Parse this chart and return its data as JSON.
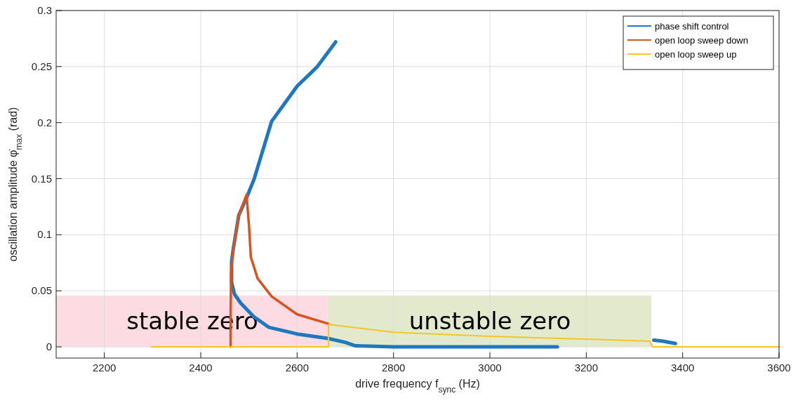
{
  "chart_data": {
    "type": "line",
    "xlabel": "drive frequency  f$_{sync}$ (Hz)",
    "ylabel": "oscillation amplitude φ̇$_{max}$ (rad)",
    "xlim": [
      2100,
      3600
    ],
    "ylim": [
      -0.01,
      0.3
    ],
    "xticks": [
      2200,
      2400,
      2600,
      2800,
      3000,
      3200,
      3400,
      3600
    ],
    "yticks": [
      0,
      0.05,
      0.1,
      0.15,
      0.2,
      0.25,
      0.3
    ],
    "grid": true,
    "legend": "top right",
    "line_style": "solid",
    "marker": "none",
    "bands": [
      {
        "axis": "x",
        "from": 2100,
        "to": 2665,
        "label": "stable zero",
        "color": "#fcdbe3"
      },
      {
        "axis": "x",
        "from": 2665,
        "to": 3335,
        "label": "unstable zero",
        "color": "#e3e9cd"
      }
    ],
    "series": [
      {
        "name": "phase shift control",
        "color": "#1f77c0",
        "x": [
          2680,
          2642,
          2600,
          2547,
          2511,
          2496,
          2479,
          2467,
          2464,
          2464,
          2470,
          2483,
          2510,
          2541,
          2600,
          2664,
          2700,
          2720,
          2800,
          3000,
          3140,
          null,
          3340,
          3360,
          3385
        ],
        "values": [
          0.272,
          0.25,
          0.2325,
          0.201,
          0.15,
          0.134,
          0.1175,
          0.086,
          0.076,
          0.0575,
          0.047,
          0.039,
          0.027,
          0.0175,
          0.0115,
          0.0075,
          0.004,
          0.001,
          0,
          0,
          0,
          null,
          0.006,
          0.005,
          0.003
        ]
      },
      {
        "name": "open loop sweep down",
        "color": "#d9531e",
        "x": [
          2665,
          2600,
          2547,
          2518,
          2504,
          2500,
          2495,
          2479,
          2467,
          2463,
          2462,
          2462
        ],
        "values": [
          0.0206,
          0.029,
          0.045,
          0.061,
          0.08,
          0.109,
          0.1356,
          0.1175,
          0.086,
          0.066,
          0.03,
          0
        ]
      },
      {
        "name": "open loop sweep up",
        "color": "#f2c624",
        "x": [
          2297,
          2665,
          2665,
          2800,
          3000,
          3200,
          3332,
          3338,
          3600
        ],
        "values": [
          0,
          0,
          0.02,
          0.013,
          0.0094,
          0.0069,
          0.005,
          0,
          0
        ]
      }
    ]
  }
}
